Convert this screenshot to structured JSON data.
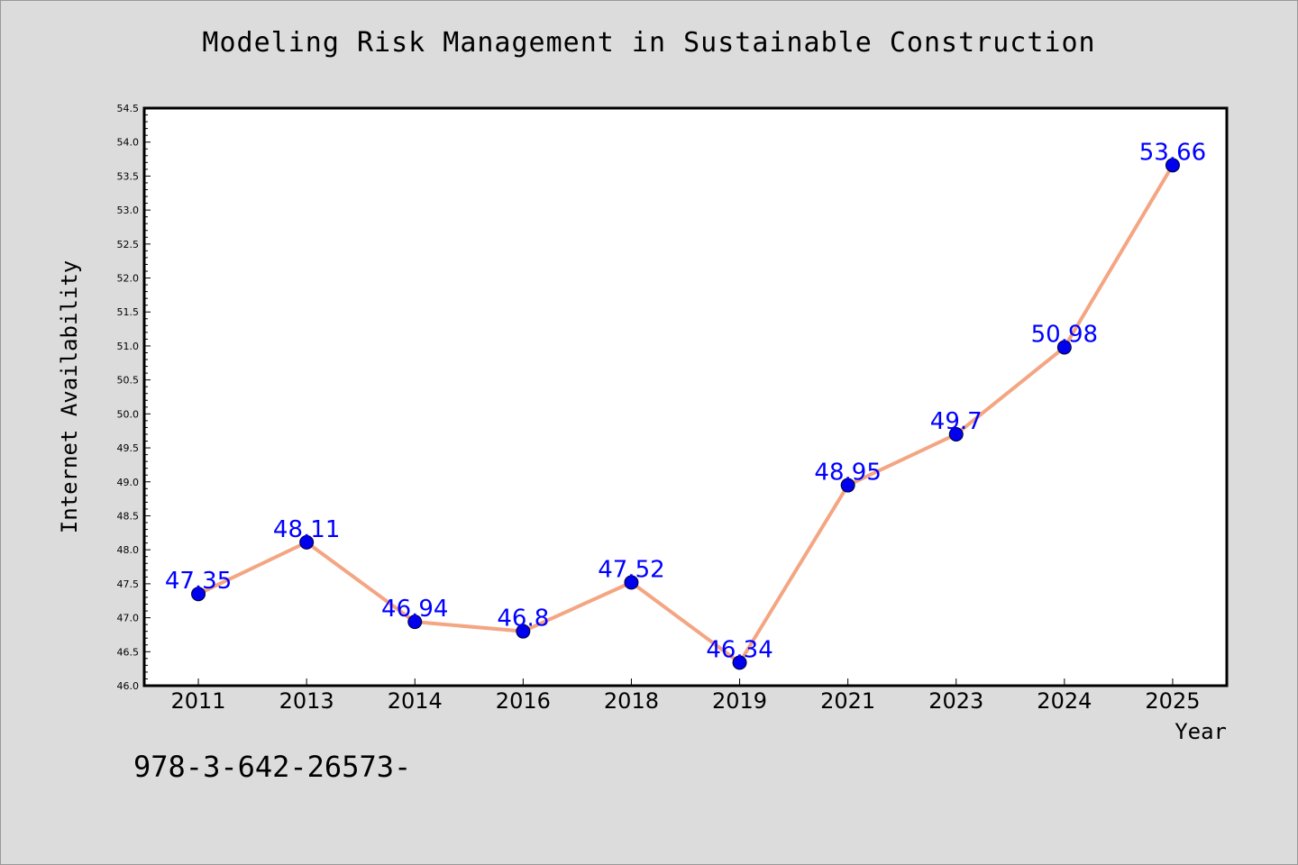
{
  "chart_data": {
    "type": "line",
    "title": "Modeling Risk Management in Sustainable Construction",
    "xlabel": "Year",
    "ylabel": "Internet Availability",
    "categories": [
      "2011",
      "2013",
      "2014",
      "2016",
      "2018",
      "2019",
      "2021",
      "2023",
      "2024",
      "2025"
    ],
    "series": [
      {
        "values": [
          47.35,
          48.11,
          46.94,
          46.8,
          47.52,
          46.34,
          48.95,
          49.7,
          50.98,
          53.66
        ],
        "data_labels": [
          "47.35",
          "48.11",
          "46.94",
          "46.8",
          "47.52",
          "46.34",
          "48.95",
          "49.7",
          "50.98",
          "53.66"
        ]
      }
    ],
    "ylim": [
      46.0,
      54.5
    ],
    "yticks": [
      "46.0",
      "46.5",
      "47.0",
      "47.5",
      "48.0",
      "48.5",
      "49.0",
      "49.5",
      "50.0",
      "50.5",
      "51.0",
      "51.5",
      "52.0",
      "52.5",
      "53.0",
      "53.5",
      "54.0",
      "54.5"
    ],
    "grid": false,
    "legend": "none",
    "colors": {
      "line": "#f4a582",
      "marker": "#0000ee",
      "data_label": "#0000ff",
      "plot_background": "#ffffff",
      "page_background": "#dcdcdc"
    }
  },
  "footer_text": "978-3-642-26573-"
}
